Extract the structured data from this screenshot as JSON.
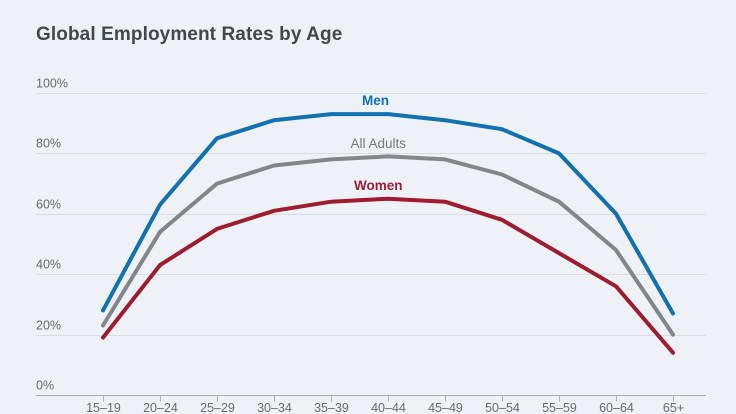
{
  "chart_data": {
    "type": "line",
    "title": "Global Employment Rates by Age",
    "categories": [
      "15–19",
      "20–24",
      "25–29",
      "30–34",
      "35–39",
      "40–44",
      "45–49",
      "50–54",
      "55–59",
      "60–64",
      "65+"
    ],
    "series": [
      {
        "name": "Men",
        "color": "#1170b0",
        "label_color": "#1170b0",
        "label_bold": true,
        "label_anchor_index": 4.78,
        "values": [
          28,
          63,
          85,
          91,
          93,
          93,
          91,
          88,
          80,
          60,
          27
        ]
      },
      {
        "name": "All Adults",
        "color": "#838689",
        "label_color": "#75797d",
        "label_bold": false,
        "label_anchor_index": 4.83,
        "values": [
          23,
          54,
          70,
          76,
          78,
          79,
          78,
          73,
          64,
          48,
          20
        ]
      },
      {
        "name": "Women",
        "color": "#9d1c30",
        "label_color": "#9d1c30",
        "label_bold": true,
        "label_anchor_index": 4.83,
        "values": [
          19,
          43,
          55,
          61,
          64,
          65,
          64,
          58,
          47,
          36,
          14
        ]
      }
    ],
    "y_ticks": [
      "100%",
      "80%",
      "60%",
      "40%",
      "20%",
      "0%"
    ],
    "y_tick_values": [
      100,
      80,
      60,
      40,
      20,
      0
    ],
    "ylim": [
      0,
      100
    ],
    "xlabel": "",
    "ylabel": "",
    "grid": "horizontal",
    "legend_position": "inline-labels-above-lines",
    "style": {
      "background": "#eef2f7",
      "grid_color": "#d8dde2",
      "axis_color": "#a9aeb3",
      "tick_text_color": "#656b71",
      "title_color": "#40474d"
    }
  }
}
